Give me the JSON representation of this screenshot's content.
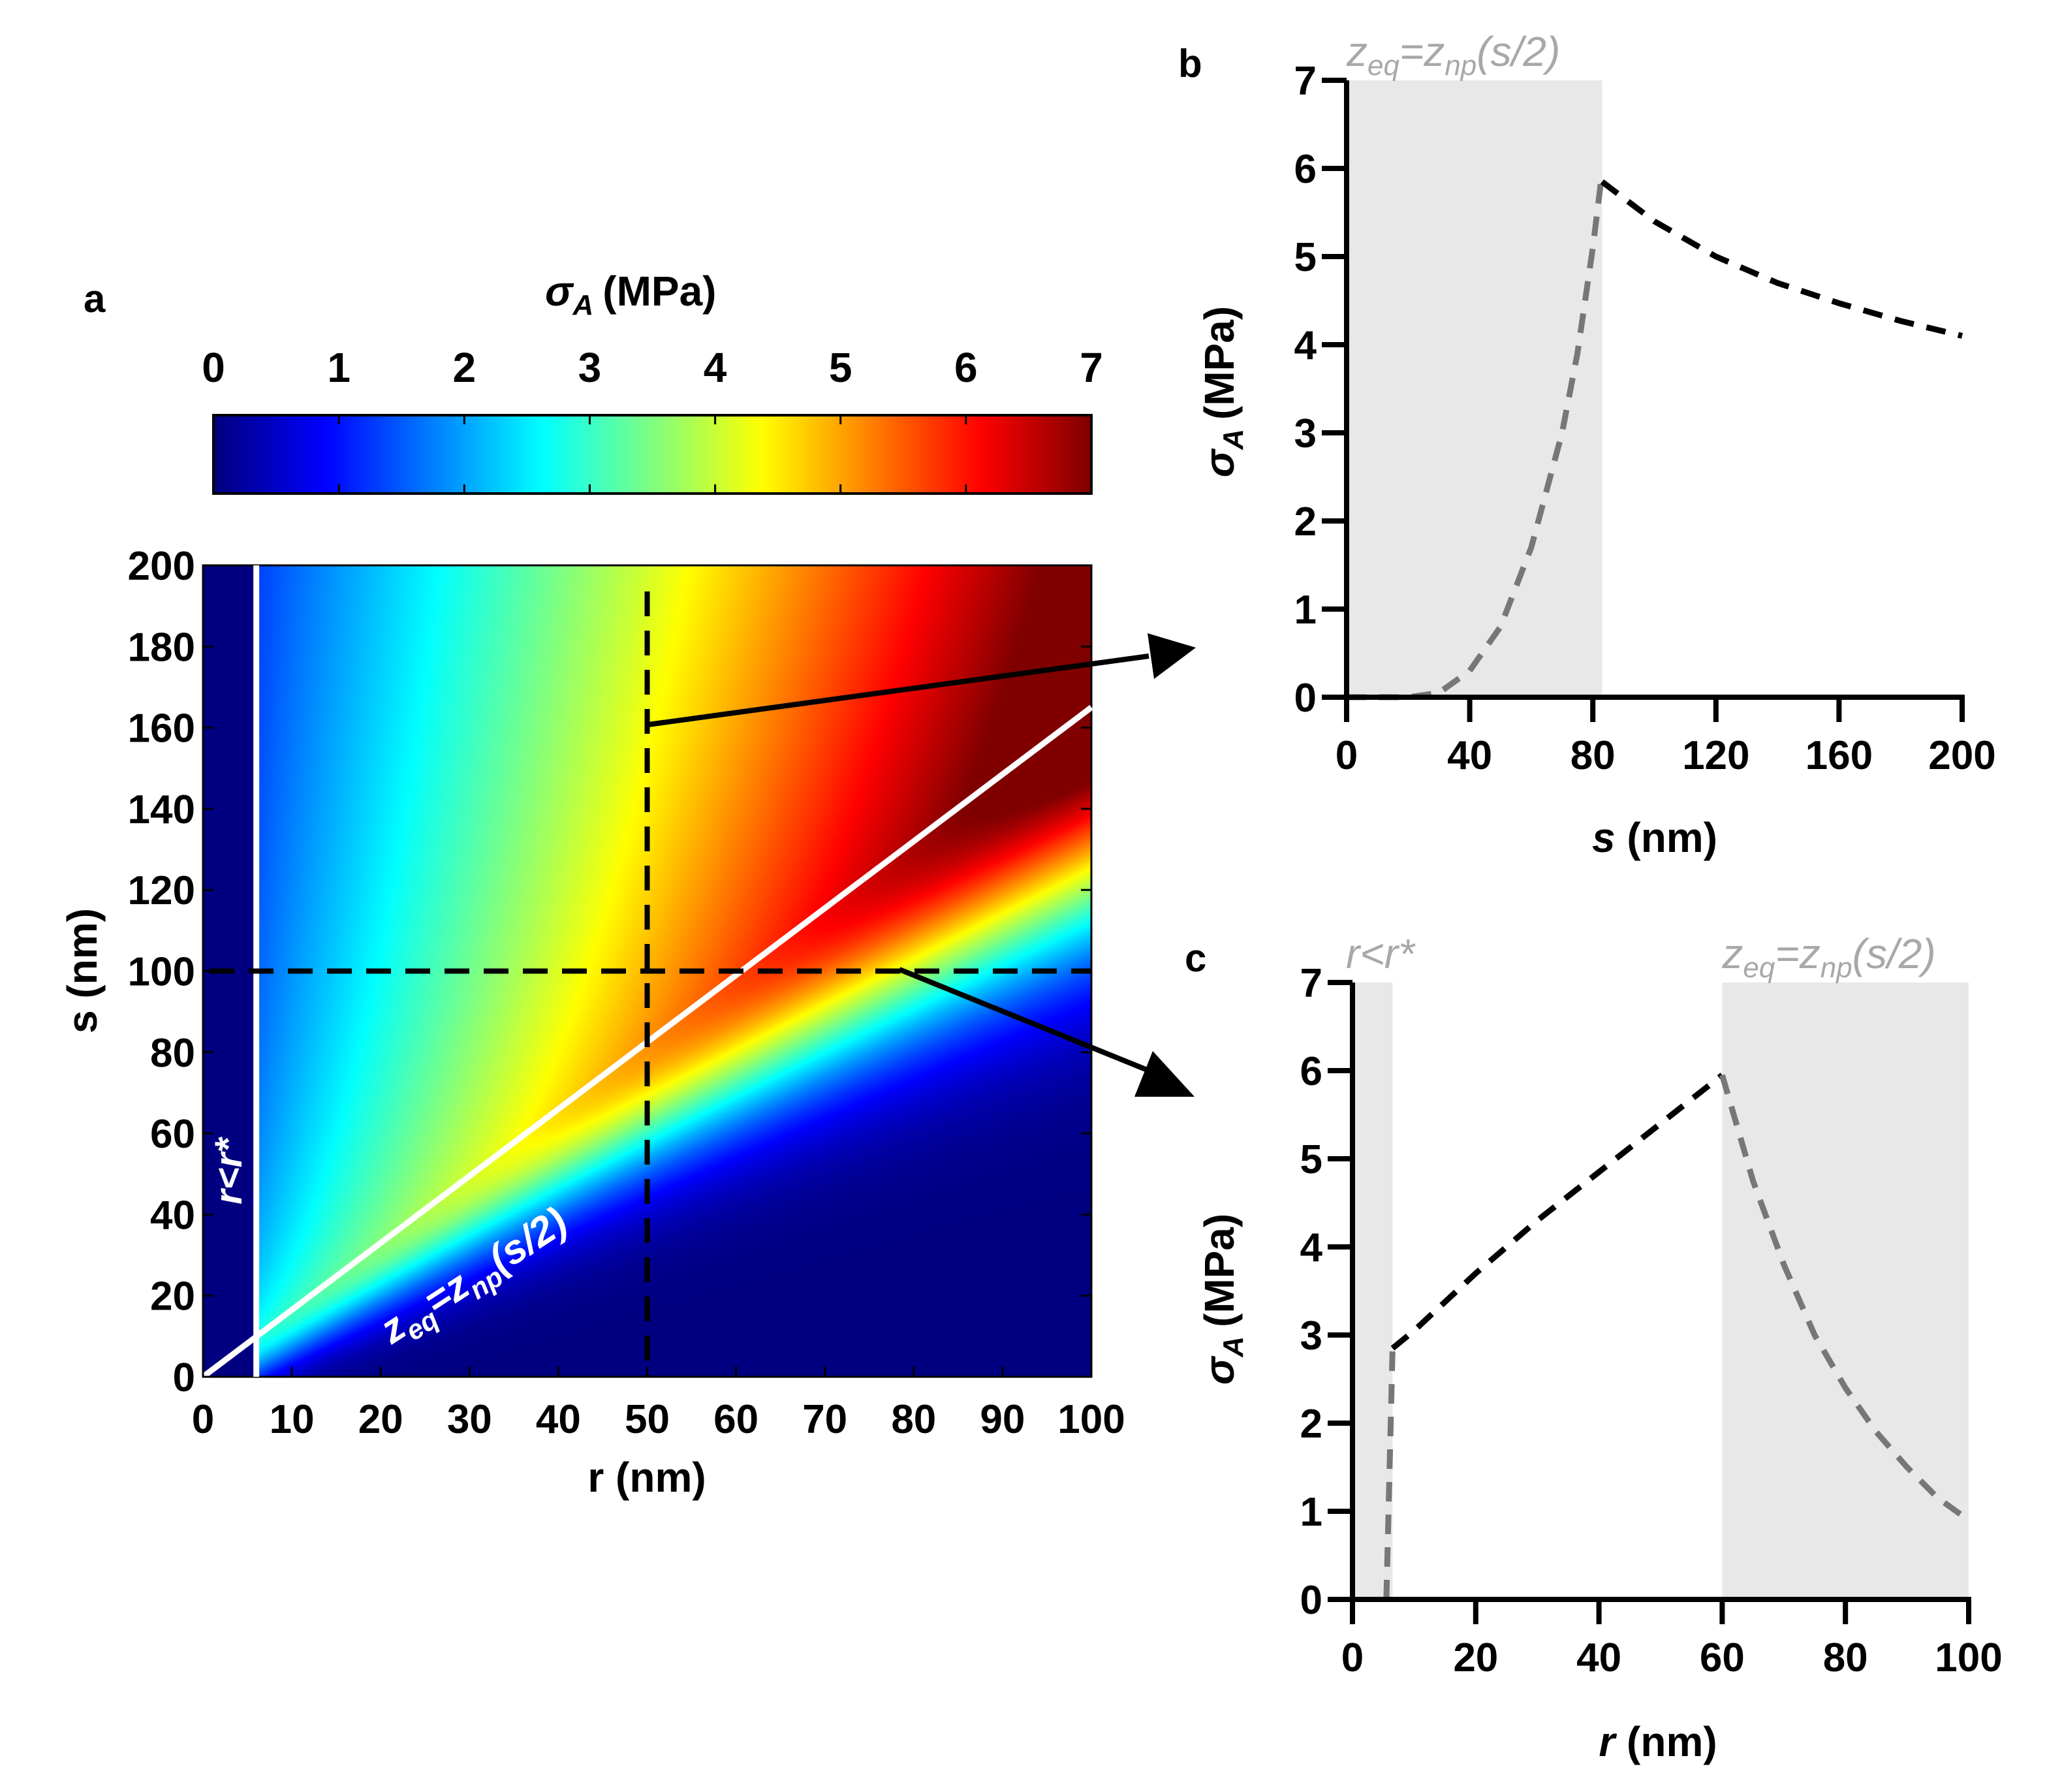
{
  "panels": {
    "a": {
      "letter": "a"
    },
    "b": {
      "letter": "b"
    },
    "c": {
      "letter": "c"
    }
  },
  "colorbar": {
    "label_sym": "σ",
    "label_sub": "A",
    "label_unit": "(MPa)",
    "min": 0,
    "max": 7,
    "ticks": [
      "0",
      "1",
      "2",
      "3",
      "4",
      "5",
      "6",
      "7"
    ],
    "colormap": "jet"
  },
  "heatmap": {
    "xlabel": "r (nm)",
    "ylabel": "s (nm)",
    "xlim": [
      0,
      100
    ],
    "ylim": [
      0,
      200
    ],
    "xticks": [
      "0",
      "10",
      "20",
      "30",
      "40",
      "50",
      "60",
      "70",
      "80",
      "90",
      "100"
    ],
    "yticks": [
      "0",
      "20",
      "40",
      "60",
      "80",
      "100",
      "120",
      "140",
      "160",
      "180",
      "200"
    ],
    "r_star": 6,
    "boundary_slope": 1.65,
    "label_r_star": "r<r*",
    "label_boundary": {
      "z": "z",
      "eq": "eq",
      "eqsign": "=z",
      "np": "np",
      "arg": "(s/2)"
    },
    "cut_r": 50,
    "cut_s": 100,
    "colors": {
      "line": "#ffffff",
      "cut": "#000000"
    }
  },
  "chart_data": [
    {
      "type": "heatmap",
      "title": "σA (MPa)",
      "xlabel": "r (nm)",
      "ylabel": "s (nm)",
      "xlim": [
        0,
        100
      ],
      "ylim": [
        0,
        200
      ],
      "color_range": [
        0,
        7
      ],
      "annotations": [
        "r<r*",
        "zeq=znp(s/2)"
      ]
    },
    {
      "type": "line",
      "xlabel": "s (nm)",
      "ylabel": "σA (MPa)",
      "xlim": [
        0,
        200
      ],
      "ylim": [
        0,
        7
      ],
      "xticks": [
        "0",
        "40",
        "80",
        "120",
        "160",
        "200"
      ],
      "yticks": [
        "0",
        "1",
        "2",
        "3",
        "4",
        "5",
        "6",
        "7"
      ],
      "shaded_region": {
        "x": [
          0,
          83
        ],
        "label": {
          "z": "z",
          "eq": "eq",
          "eqsign": "=z",
          "np": "np",
          "arg": "(s/2)"
        }
      },
      "series": [
        {
          "name": "shaded segment",
          "style": "dashed",
          "color": "#777777",
          "x": [
            0,
            10,
            20,
            30,
            40,
            50,
            60,
            70,
            75,
            80,
            83
          ],
          "y": [
            0,
            0,
            0,
            0.05,
            0.3,
            0.8,
            1.7,
            3.0,
            3.9,
            5.1,
            5.95
          ]
        },
        {
          "name": "main",
          "style": "dashed",
          "color": "#000000",
          "x": [
            83,
            100,
            120,
            140,
            160,
            180,
            200
          ],
          "y": [
            5.85,
            5.4,
            5.0,
            4.7,
            4.47,
            4.27,
            4.1
          ]
        }
      ]
    },
    {
      "type": "line",
      "xlabel": "r (nm)",
      "ylabel": "σA (MPa)",
      "xlim": [
        0,
        100
      ],
      "ylim": [
        0,
        7
      ],
      "xticks": [
        "0",
        "20",
        "40",
        "60",
        "80",
        "100"
      ],
      "yticks": [
        "0",
        "1",
        "2",
        "3",
        "4",
        "5",
        "6",
        "7"
      ],
      "shaded_regions": [
        {
          "x": [
            0,
            6.5
          ],
          "label": "r<r*"
        },
        {
          "x": [
            60,
            100
          ],
          "label": {
            "z": "z",
            "eq": "eq",
            "eqsign": "=z",
            "np": "np",
            "arg": "(s/2)"
          }
        }
      ],
      "series": [
        {
          "name": "r<r* segment",
          "style": "dashed",
          "color": "#777777",
          "x": [
            5.5,
            6.5
          ],
          "y": [
            0,
            2.85
          ]
        },
        {
          "name": "main",
          "style": "dashed",
          "color": "#000000",
          "x": [
            6.5,
            10,
            20,
            30,
            40,
            50,
            60
          ],
          "y": [
            2.85,
            3.05,
            3.7,
            4.3,
            4.85,
            5.4,
            5.95
          ]
        },
        {
          "name": "znp segment",
          "style": "dashed",
          "color": "#777777",
          "x": [
            60,
            65,
            70,
            75,
            80,
            85,
            90,
            95,
            100
          ],
          "y": [
            5.95,
            4.75,
            3.8,
            3.0,
            2.4,
            1.9,
            1.5,
            1.15,
            0.9
          ]
        }
      ]
    }
  ]
}
